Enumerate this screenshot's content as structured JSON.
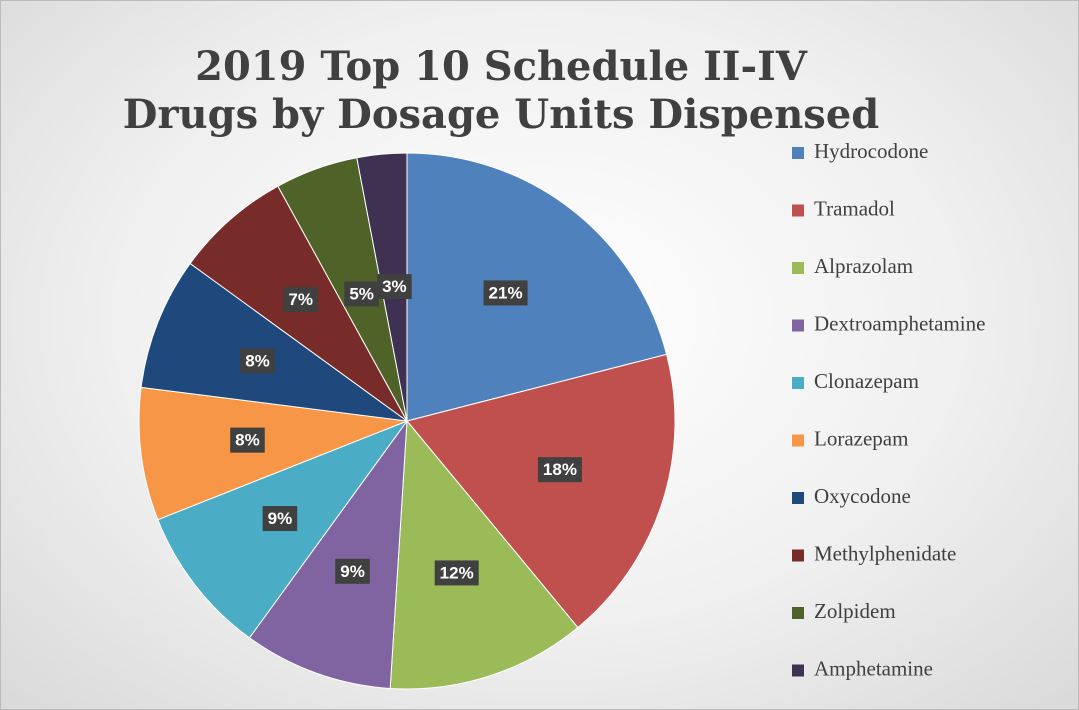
{
  "chart_data": {
    "type": "pie",
    "title": "2019 Top 10 Schedule II-IV Drugs by Dosage Units Dispensed",
    "categories": [
      "Hydrocodone",
      "Tramadol",
      "Alprazolam",
      "Dextroamphetamine",
      "Clonazepam",
      "Lorazepam",
      "Oxycodone",
      "Methylphenidate",
      "Zolpidem",
      "Amphetamine"
    ],
    "values": [
      21,
      18,
      12,
      9,
      9,
      8,
      8,
      7,
      5,
      3
    ],
    "value_labels": [
      "21%",
      "18%",
      "12%",
      "9%",
      "9%",
      "8%",
      "8%",
      "7%",
      "5%",
      "3%"
    ],
    "colors": [
      "#4f81bd",
      "#c0504d",
      "#9bbb59",
      "#8064a2",
      "#4bacc6",
      "#f79646",
      "#1f497d",
      "#772c2a",
      "#4f6228",
      "#3f3151"
    ],
    "legend": "right"
  }
}
